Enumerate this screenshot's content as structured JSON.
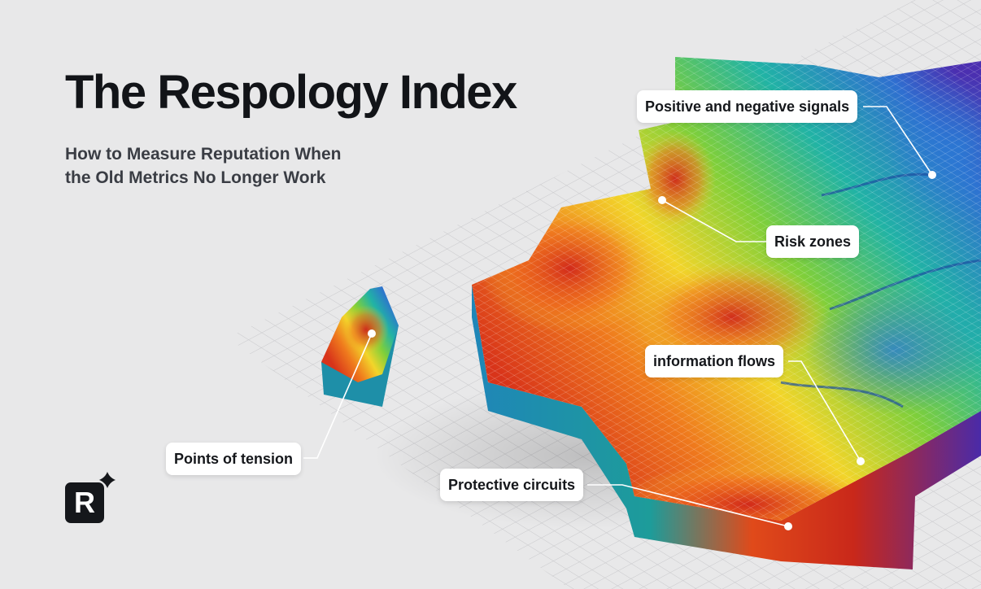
{
  "header": {
    "title": "The Respology Index",
    "subtitle": [
      "How to Measure Reputation When",
      "the Old Metrics No Longer Work"
    ]
  },
  "callouts": [
    {
      "label": "Positive and negative signals"
    },
    {
      "label": "Risk zones"
    },
    {
      "label": "information flows"
    },
    {
      "label": "Points of tension"
    },
    {
      "label": "Protective circuits"
    }
  ],
  "logo": {
    "letter": "R"
  }
}
